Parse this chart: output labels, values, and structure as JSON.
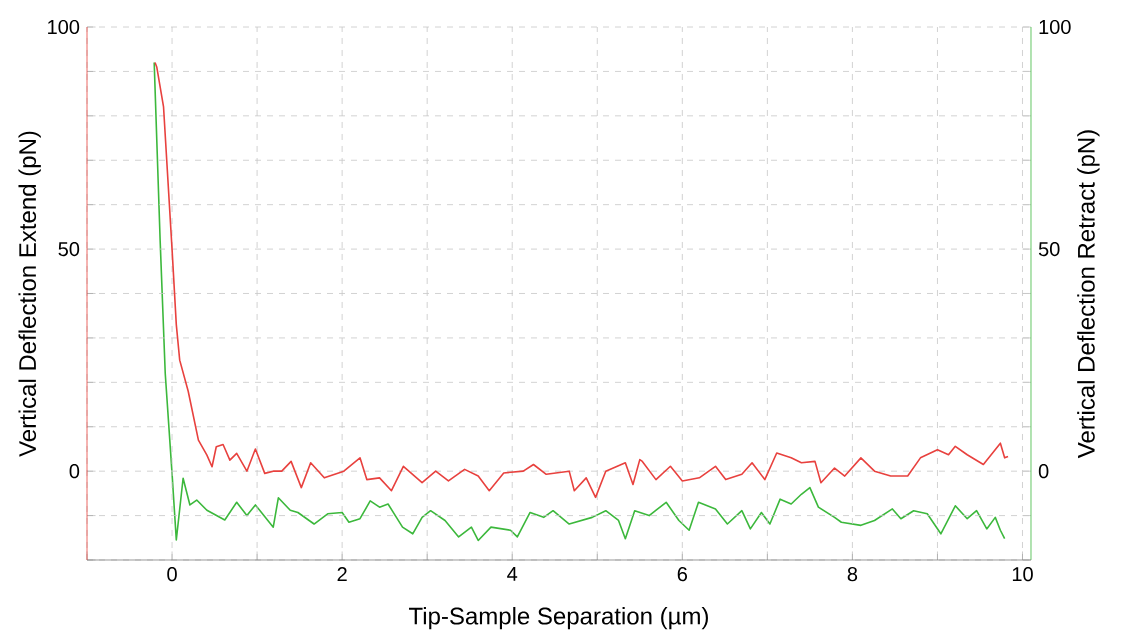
{
  "chart_data": {
    "type": "line",
    "xlabel": "Tip-Sample Separation (µm)",
    "ylabel": "Vertical Deflection Extend (pN)",
    "y2label": "Vertical Deflection Retract (pN)",
    "xlim": [
      -1,
      10.1
    ],
    "xticks": [
      {
        "value": -1,
        "label": null
      },
      0,
      {
        "value": 1,
        "label": null
      },
      2,
      {
        "value": 3,
        "label": null
      },
      4,
      {
        "value": 5,
        "label": null
      },
      6,
      {
        "value": 7,
        "label": null
      },
      8,
      {
        "value": 9,
        "label": null
      },
      10
    ],
    "ylim": [
      -20,
      100
    ],
    "yticks": [
      {
        "value": -20,
        "label": null
      },
      {
        "value": -10,
        "label": null
      },
      0,
      {
        "value": 10,
        "label": null
      },
      {
        "value": 20,
        "label": null
      },
      {
        "value": 30,
        "label": null
      },
      {
        "value": 40,
        "label": null
      },
      50,
      {
        "value": 60,
        "label": null
      },
      {
        "value": 70,
        "label": null
      },
      {
        "value": 80,
        "label": null
      },
      {
        "value": 90,
        "label": null
      },
      100
    ],
    "y2lim": [
      -20,
      100
    ],
    "y2ticks": [
      {
        "value": -20,
        "label": null
      },
      {
        "value": -10,
        "label": null
      },
      0,
      {
        "value": 10,
        "label": null
      },
      {
        "value": 20,
        "label": null
      },
      {
        "value": 30,
        "label": null
      },
      {
        "value": 40,
        "label": null
      },
      50,
      {
        "value": 60,
        "label": null
      },
      {
        "value": 70,
        "label": null
      },
      {
        "value": 80,
        "label": null
      },
      {
        "value": 90,
        "label": null
      },
      100
    ],
    "grid": true,
    "marker": "none",
    "line_style": "solid",
    "series": [
      {
        "color": "#e8413e",
        "x": [
          -0.2,
          -0.18,
          -0.1,
          0,
          0.05,
          0.09,
          0.19,
          0.31,
          0.41,
          0.47,
          0.52,
          0.6,
          0.68,
          0.76,
          0.88,
          0.98,
          1.09,
          1.19,
          1.29,
          1.4,
          1.52,
          1.63,
          1.79,
          2.02,
          2.21,
          2.29,
          2.44,
          2.58,
          2.72,
          2.94,
          3.1,
          3.25,
          3.44,
          3.6,
          3.73,
          3.9,
          4.13,
          4.25,
          4.4,
          4.67,
          4.73,
          4.87,
          4.98,
          5.1,
          5.33,
          5.42,
          5.5,
          5.53,
          5.69,
          5.86,
          6.0,
          6.2,
          6.39,
          6.51,
          6.7,
          6.82,
          6.97,
          7.11,
          7.28,
          7.4,
          7.56,
          7.63,
          7.79,
          7.91,
          8.1,
          8.26,
          8.45,
          8.65,
          8.8,
          9.0,
          9.13,
          9.21,
          9.35,
          9.54,
          9.74,
          9.79,
          9.83
        ],
        "values": [
          92,
          91,
          82,
          50,
          33,
          25,
          18,
          7,
          3.6,
          1,
          5.5,
          6,
          2.5,
          4,
          0,
          5,
          -0.5,
          0,
          0,
          2.2,
          -3.7,
          1.9,
          -1.5,
          0,
          3,
          -1.9,
          -1.5,
          -4.4,
          1.1,
          -2.6,
          0,
          -2.2,
          0.4,
          -1.1,
          -4.4,
          -0.4,
          0,
          1.5,
          -0.7,
          0,
          -4.4,
          -1.5,
          -5.9,
          0,
          1.9,
          -3,
          2.6,
          2.2,
          -1.9,
          1.1,
          -2.2,
          -1.5,
          1.1,
          -1.9,
          -0.7,
          1.9,
          -1.9,
          4.1,
          3,
          1.9,
          2.2,
          -2.6,
          0.7,
          -1.1,
          3,
          0,
          -1.1,
          -1.1,
          3,
          4.8,
          3.7,
          5.6,
          3.7,
          1.5,
          6.3,
          3,
          3.3
        ]
      },
      {
        "color": "#3cb83c",
        "axis": "y2",
        "x": [
          -0.21,
          -0.14,
          -0.08,
          0,
          0.05,
          0.13,
          0.21,
          0.29,
          0.41,
          0.62,
          0.76,
          0.88,
          0.98,
          1.19,
          1.25,
          1.39,
          1.48,
          1.67,
          1.83,
          2.0,
          2.08,
          2.21,
          2.33,
          2.44,
          2.54,
          2.71,
          2.83,
          2.94,
          3.04,
          3.21,
          3.37,
          3.52,
          3.6,
          3.75,
          3.98,
          4.06,
          4.21,
          4.37,
          4.48,
          4.67,
          4.94,
          5.1,
          5.25,
          5.33,
          5.44,
          5.61,
          5.81,
          5.96,
          6.08,
          6.19,
          6.39,
          6.53,
          6.7,
          6.8,
          6.93,
          7.03,
          7.15,
          7.28,
          7.4,
          7.5,
          7.6,
          7.79,
          7.87,
          8.1,
          8.26,
          8.47,
          8.57,
          8.72,
          8.88,
          9.04,
          9.21,
          9.35,
          9.46,
          9.58,
          9.68,
          9.74,
          9.79
        ],
        "values": [
          92,
          52,
          22,
          -0.5,
          -15.5,
          -1.6,
          -7.6,
          -6.5,
          -8.8,
          -11,
          -7,
          -10,
          -7.6,
          -12.6,
          -6,
          -8.8,
          -9.3,
          -11.9,
          -9.6,
          -9.3,
          -11.5,
          -10.7,
          -6.7,
          -8.1,
          -7.4,
          -12.6,
          -14.1,
          -10.4,
          -8.9,
          -11.1,
          -14.8,
          -12.6,
          -15.6,
          -12.6,
          -13.3,
          -14.8,
          -9.3,
          -10.4,
          -8.9,
          -11.9,
          -10.4,
          -8.9,
          -11.1,
          -15.2,
          -8.9,
          -10,
          -7,
          -11.1,
          -13.3,
          -7,
          -8.5,
          -11.9,
          -8.9,
          -13,
          -9.3,
          -11.9,
          -6.3,
          -7.4,
          -5.2,
          -3.7,
          -8.1,
          -10.4,
          -11.5,
          -12.2,
          -11.1,
          -8.5,
          -10.7,
          -8.9,
          -9.6,
          -14.1,
          -7.8,
          -10.7,
          -8.9,
          -13,
          -10.4,
          -13.3,
          -15.2
        ]
      }
    ]
  }
}
